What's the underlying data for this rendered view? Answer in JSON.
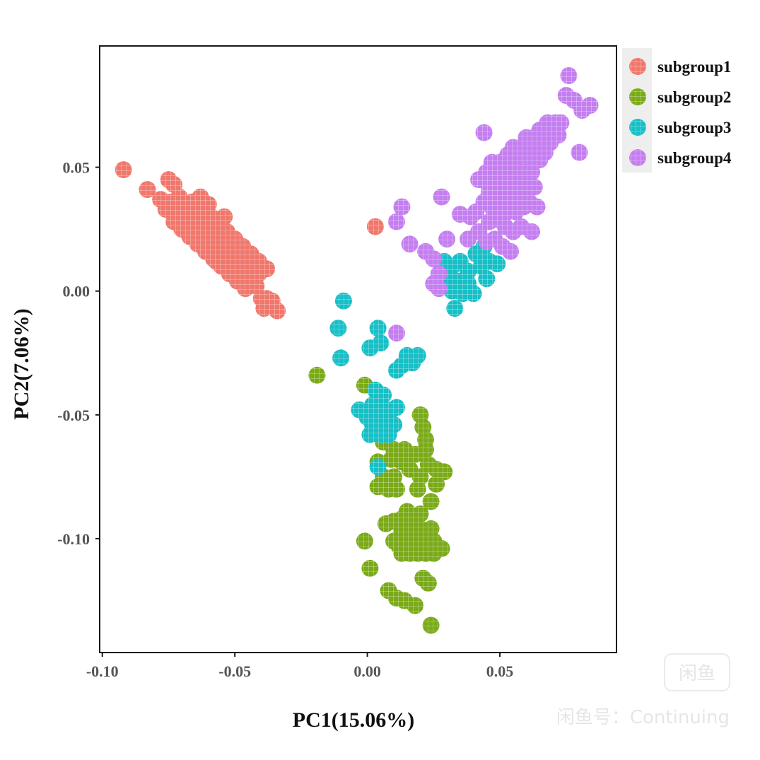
{
  "chart_data": {
    "type": "scatter",
    "title": "",
    "xlabel": "PC1(15.06%)",
    "ylabel": "PC2(7.06%)",
    "xlim": [
      -0.101,
      0.094
    ],
    "ylim": [
      -0.146,
      0.099
    ],
    "xticks": [
      -0.1,
      -0.05,
      0.0,
      0.05
    ],
    "xtick_labels": [
      "-0.10",
      "-0.05",
      "0.00",
      "0.05"
    ],
    "yticks": [
      0.05,
      0.0,
      -0.05,
      -0.1
    ],
    "ytick_labels": [
      "0.05",
      "0.00",
      "-0.05",
      "-0.10"
    ],
    "grid": false,
    "legend_position": "outside-top-right",
    "series": [
      {
        "name": "subgroup1",
        "color": "#F0776C",
        "points": [
          [
            -0.092,
            0.049
          ],
          [
            -0.083,
            0.041
          ],
          [
            -0.075,
            0.045
          ],
          [
            -0.073,
            0.043
          ],
          [
            -0.078,
            0.037
          ],
          [
            -0.074,
            0.036
          ],
          [
            -0.071,
            0.038
          ],
          [
            -0.076,
            0.033
          ],
          [
            -0.072,
            0.031
          ],
          [
            -0.068,
            0.034
          ],
          [
            -0.066,
            0.036
          ],
          [
            -0.073,
            0.028
          ],
          [
            -0.069,
            0.029
          ],
          [
            -0.065,
            0.031
          ],
          [
            -0.062,
            0.033
          ],
          [
            -0.07,
            0.025
          ],
          [
            -0.066,
            0.026
          ],
          [
            -0.062,
            0.028
          ],
          [
            -0.059,
            0.03
          ],
          [
            -0.067,
            0.022
          ],
          [
            -0.063,
            0.023
          ],
          [
            -0.059,
            0.025
          ],
          [
            -0.056,
            0.027
          ],
          [
            -0.064,
            0.019
          ],
          [
            -0.06,
            0.02
          ],
          [
            -0.056,
            0.022
          ],
          [
            -0.053,
            0.024
          ],
          [
            -0.061,
            0.016
          ],
          [
            -0.057,
            0.017
          ],
          [
            -0.053,
            0.019
          ],
          [
            -0.05,
            0.021
          ],
          [
            -0.058,
            0.013
          ],
          [
            -0.054,
            0.014
          ],
          [
            -0.05,
            0.016
          ],
          [
            -0.047,
            0.018
          ],
          [
            -0.055,
            0.01
          ],
          [
            -0.051,
            0.011
          ],
          [
            -0.047,
            0.013
          ],
          [
            -0.044,
            0.015
          ],
          [
            -0.052,
            0.007
          ],
          [
            -0.048,
            0.008
          ],
          [
            -0.044,
            0.01
          ],
          [
            -0.041,
            0.012
          ],
          [
            -0.049,
            0.004
          ],
          [
            -0.045,
            0.005
          ],
          [
            -0.041,
            0.007
          ],
          [
            -0.038,
            0.009
          ],
          [
            -0.046,
            0.001
          ],
          [
            -0.042,
            0.002
          ],
          [
            -0.04,
            -0.003
          ],
          [
            -0.038,
            -0.003
          ],
          [
            -0.036,
            -0.004
          ],
          [
            -0.034,
            -0.008
          ],
          [
            -0.039,
            -0.007
          ],
          [
            -0.063,
            0.038
          ],
          [
            -0.06,
            0.035
          ],
          [
            -0.054,
            0.03
          ],
          [
            -0.057,
            0.012
          ],
          [
            0.003,
            0.026
          ]
        ]
      },
      {
        "name": "subgroup2",
        "color": "#7AAA18",
        "points": [
          [
            -0.019,
            -0.034
          ],
          [
            -0.001,
            -0.038
          ],
          [
            0.004,
            -0.048
          ],
          [
            0.007,
            -0.051
          ],
          [
            0.006,
            -0.061
          ],
          [
            0.01,
            -0.064
          ],
          [
            0.014,
            -0.064
          ],
          [
            0.018,
            -0.066
          ],
          [
            0.022,
            -0.064
          ],
          [
            0.004,
            -0.069
          ],
          [
            0.009,
            -0.068
          ],
          [
            0.013,
            -0.069
          ],
          [
            0.006,
            -0.075
          ],
          [
            0.01,
            -0.075
          ],
          [
            0.02,
            -0.075
          ],
          [
            0.004,
            -0.079
          ],
          [
            0.008,
            -0.08
          ],
          [
            0.011,
            -0.08
          ],
          [
            0.019,
            -0.08
          ],
          [
            0.026,
            -0.072
          ],
          [
            0.029,
            -0.073
          ],
          [
            0.026,
            -0.078
          ],
          [
            0.024,
            -0.085
          ],
          [
            0.02,
            -0.05
          ],
          [
            0.021,
            -0.055
          ],
          [
            0.022,
            -0.06
          ],
          [
            0.016,
            -0.072
          ],
          [
            0.023,
            -0.07
          ],
          [
            0.007,
            -0.094
          ],
          [
            0.01,
            -0.093
          ],
          [
            0.013,
            -0.092
          ],
          [
            0.015,
            -0.089
          ],
          [
            0.017,
            -0.092
          ],
          [
            0.02,
            -0.09
          ],
          [
            0.013,
            -0.097
          ],
          [
            0.016,
            -0.097
          ],
          [
            0.02,
            -0.096
          ],
          [
            0.024,
            -0.096
          ],
          [
            0.01,
            -0.101
          ],
          [
            0.012,
            -0.103
          ],
          [
            0.015,
            -0.101
          ],
          [
            0.019,
            -0.101
          ],
          [
            0.022,
            -0.101
          ],
          [
            0.025,
            -0.101
          ],
          [
            0.013,
            -0.106
          ],
          [
            0.016,
            -0.106
          ],
          [
            0.019,
            -0.106
          ],
          [
            0.022,
            -0.106
          ],
          [
            0.025,
            -0.106
          ],
          [
            0.028,
            -0.104
          ],
          [
            -0.001,
            -0.101
          ],
          [
            0.001,
            -0.112
          ],
          [
            0.008,
            -0.121
          ],
          [
            0.011,
            -0.124
          ],
          [
            0.014,
            -0.125
          ],
          [
            0.018,
            -0.127
          ],
          [
            0.021,
            -0.116
          ],
          [
            0.023,
            -0.118
          ],
          [
            0.024,
            -0.135
          ]
        ]
      },
      {
        "name": "subgroup3",
        "color": "#17BFC6",
        "points": [
          [
            -0.009,
            -0.004
          ],
          [
            -0.011,
            -0.015
          ],
          [
            -0.01,
            -0.027
          ],
          [
            0.004,
            -0.015
          ],
          [
            0.001,
            -0.023
          ],
          [
            0.005,
            -0.021
          ],
          [
            0.015,
            -0.026
          ],
          [
            0.019,
            -0.026
          ],
          [
            0.013,
            -0.03
          ],
          [
            0.011,
            -0.032
          ],
          [
            0.017,
            -0.029
          ],
          [
            0.003,
            -0.04
          ],
          [
            0.006,
            -0.042
          ],
          [
            0.002,
            -0.046
          ],
          [
            0.006,
            -0.047
          ],
          [
            0.0,
            -0.051
          ],
          [
            0.004,
            -0.05
          ],
          [
            0.008,
            -0.05
          ],
          [
            -0.003,
            -0.048
          ],
          [
            0.002,
            -0.054
          ],
          [
            0.006,
            -0.055
          ],
          [
            0.01,
            -0.054
          ],
          [
            0.001,
            -0.058
          ],
          [
            0.005,
            -0.058
          ],
          [
            0.008,
            -0.058
          ],
          [
            0.011,
            -0.047
          ],
          [
            0.004,
            -0.071
          ],
          [
            0.029,
            0.012
          ],
          [
            0.032,
            0.01
          ],
          [
            0.035,
            0.012
          ],
          [
            0.038,
            0.008
          ],
          [
            0.041,
            0.015
          ],
          [
            0.044,
            0.018
          ],
          [
            0.031,
            0.005
          ],
          [
            0.034,
            0.004
          ],
          [
            0.038,
            0.003
          ],
          [
            0.043,
            0.01
          ],
          [
            0.046,
            0.012
          ],
          [
            0.049,
            0.011
          ],
          [
            0.032,
            0.0
          ],
          [
            0.036,
            -0.001
          ],
          [
            0.04,
            -0.001
          ],
          [
            0.033,
            -0.007
          ],
          [
            0.045,
            0.005
          ]
        ]
      },
      {
        "name": "subgroup4",
        "color": "#C47EF0",
        "points": [
          [
            0.076,
            0.087
          ],
          [
            0.075,
            0.079
          ],
          [
            0.078,
            0.077
          ],
          [
            0.081,
            0.073
          ],
          [
            0.084,
            0.075
          ],
          [
            0.068,
            0.068
          ],
          [
            0.071,
            0.068
          ],
          [
            0.073,
            0.068
          ],
          [
            0.065,
            0.065
          ],
          [
            0.068,
            0.065
          ],
          [
            0.072,
            0.063
          ],
          [
            0.06,
            0.062
          ],
          [
            0.063,
            0.062
          ],
          [
            0.066,
            0.062
          ],
          [
            0.069,
            0.06
          ],
          [
            0.044,
            0.064
          ],
          [
            0.055,
            0.058
          ],
          [
            0.058,
            0.058
          ],
          [
            0.061,
            0.058
          ],
          [
            0.064,
            0.058
          ],
          [
            0.067,
            0.056
          ],
          [
            0.053,
            0.055
          ],
          [
            0.056,
            0.055
          ],
          [
            0.059,
            0.055
          ],
          [
            0.062,
            0.053
          ],
          [
            0.065,
            0.053
          ],
          [
            0.08,
            0.056
          ],
          [
            0.047,
            0.052
          ],
          [
            0.05,
            0.052
          ],
          [
            0.053,
            0.05
          ],
          [
            0.056,
            0.05
          ],
          [
            0.059,
            0.048
          ],
          [
            0.062,
            0.048
          ],
          [
            0.045,
            0.048
          ],
          [
            0.042,
            0.045
          ],
          [
            0.045,
            0.044
          ],
          [
            0.048,
            0.046
          ],
          [
            0.051,
            0.046
          ],
          [
            0.054,
            0.044
          ],
          [
            0.057,
            0.044
          ],
          [
            0.06,
            0.042
          ],
          [
            0.063,
            0.042
          ],
          [
            0.046,
            0.04
          ],
          [
            0.049,
            0.04
          ],
          [
            0.052,
            0.038
          ],
          [
            0.055,
            0.038
          ],
          [
            0.058,
            0.036
          ],
          [
            0.061,
            0.036
          ],
          [
            0.044,
            0.036
          ],
          [
            0.047,
            0.034
          ],
          [
            0.05,
            0.034
          ],
          [
            0.053,
            0.032
          ],
          [
            0.056,
            0.032
          ],
          [
            0.059,
            0.034
          ],
          [
            0.064,
            0.034
          ],
          [
            0.028,
            0.038
          ],
          [
            0.035,
            0.031
          ],
          [
            0.039,
            0.03
          ],
          [
            0.041,
            0.032
          ],
          [
            0.046,
            0.028
          ],
          [
            0.049,
            0.029
          ],
          [
            0.052,
            0.026
          ],
          [
            0.055,
            0.024
          ],
          [
            0.058,
            0.026
          ],
          [
            0.062,
            0.024
          ],
          [
            0.042,
            0.024
          ],
          [
            0.045,
            0.02
          ],
          [
            0.048,
            0.021
          ],
          [
            0.051,
            0.018
          ],
          [
            0.054,
            0.016
          ],
          [
            0.011,
            0.028
          ],
          [
            0.013,
            0.034
          ],
          [
            0.016,
            0.019
          ],
          [
            0.022,
            0.016
          ],
          [
            0.025,
            0.013
          ],
          [
            0.027,
            0.007
          ],
          [
            0.03,
            0.021
          ],
          [
            0.038,
            0.021
          ],
          [
            0.025,
            0.003
          ],
          [
            0.027,
            0.001
          ],
          [
            0.011,
            -0.017
          ]
        ]
      }
    ]
  },
  "watermark": {
    "logo_text": "闲鱼",
    "caption": "闲鱼号：Continuing"
  }
}
